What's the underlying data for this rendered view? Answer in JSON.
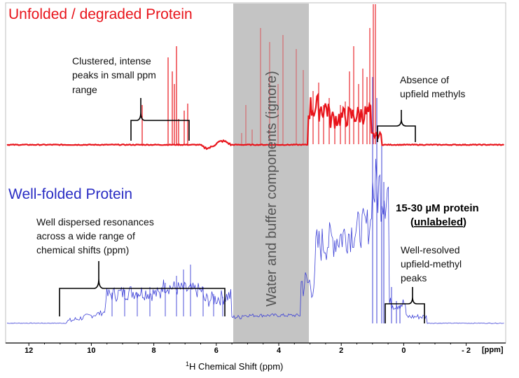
{
  "titles": {
    "unfolded": "Unfolded / degraded Protein",
    "folded": "Well-folded Protein"
  },
  "water_band": {
    "label": "Water and buffer components (ignore)",
    "fill": "#c4c4c4"
  },
  "notes": {
    "clustered": [
      "Clustered, intense",
      "peaks in small ppm",
      "range"
    ],
    "absence": [
      "Absence of",
      "upfield methyls"
    ],
    "dispersed": [
      "Well dispersed resonances",
      "across a wide range of",
      "chemical shifts (ppm)"
    ],
    "concentration": "15-30 µM protein",
    "unlabeled": "unlabeled",
    "resolved": [
      "Well-resolved",
      "upfield-methyl",
      "peaks"
    ]
  },
  "axis": {
    "ticks": [
      "12",
      "10",
      "8",
      "6",
      "4",
      "2",
      "0",
      "- 2"
    ],
    "unit": "[ppm]",
    "label_sup": "1",
    "label": "H Chemical Shift (ppm)"
  },
  "colors": {
    "unfolded": "#e8141b",
    "folded": "#3b3fd6",
    "bracket": "#000000"
  }
}
